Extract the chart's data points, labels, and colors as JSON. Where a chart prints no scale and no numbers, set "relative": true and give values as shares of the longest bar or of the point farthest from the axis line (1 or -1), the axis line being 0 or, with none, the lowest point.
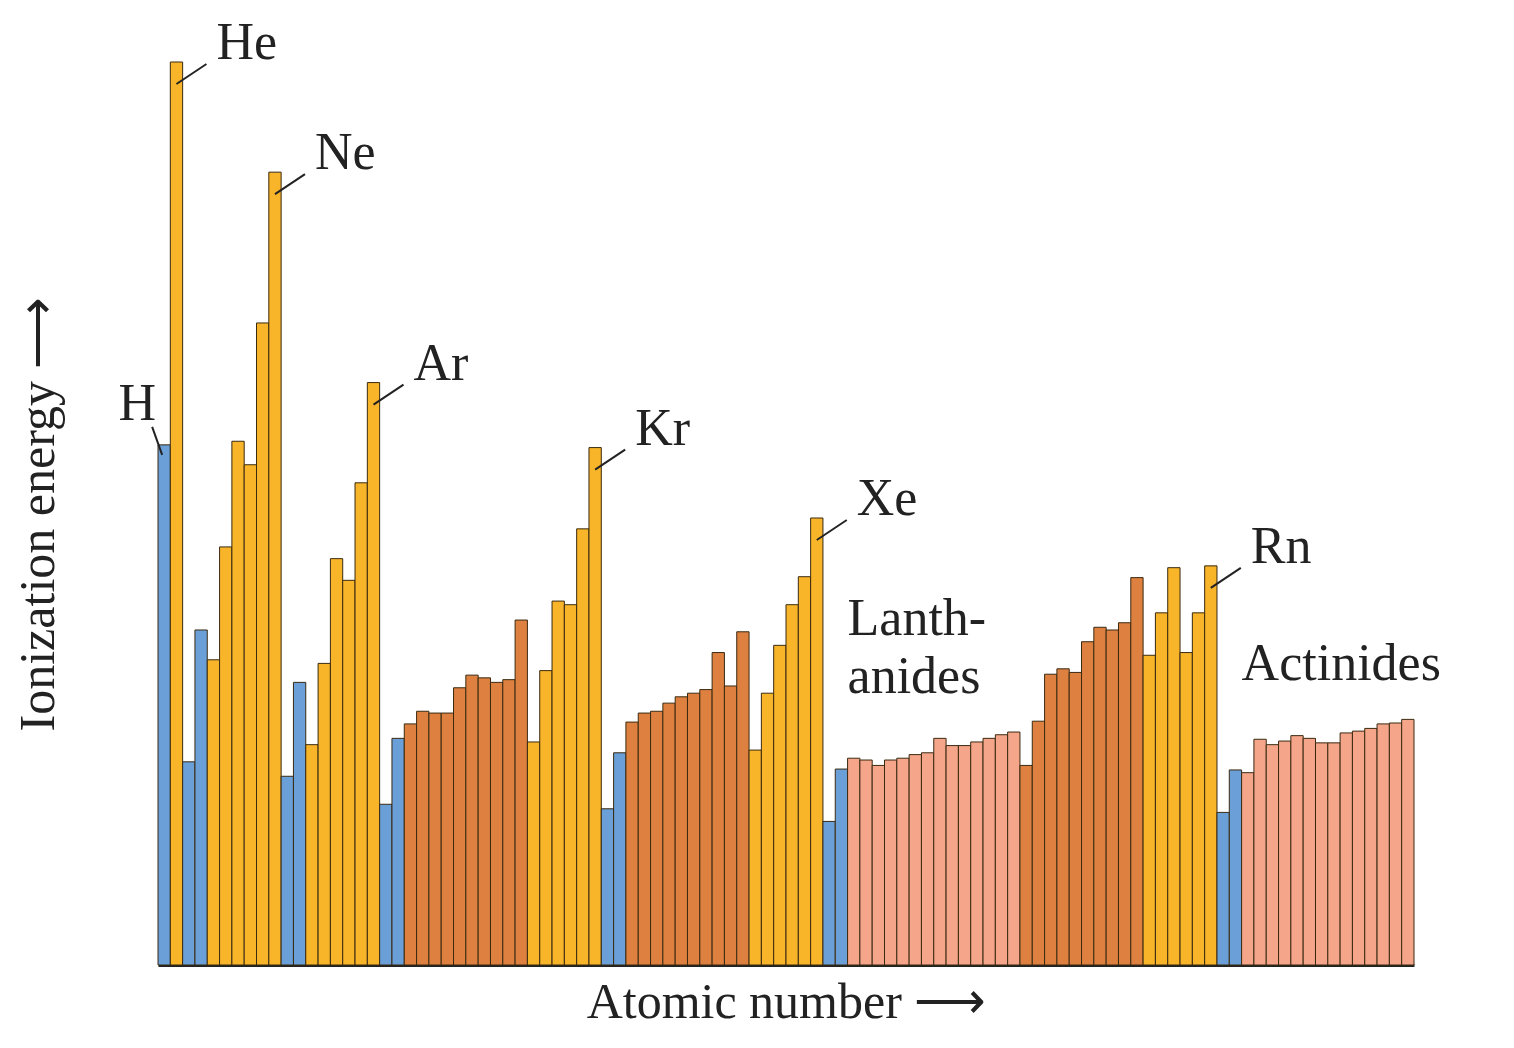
{
  "chart_data": {
    "type": "bar",
    "relative": true,
    "xlabel": "Atomic number ⟶",
    "ylabel": "Ionization energy ⟶",
    "categories": [
      null,
      null,
      null,
      null,
      null,
      null,
      null,
      null,
      null,
      null,
      null,
      null,
      null,
      null,
      null,
      null,
      null,
      null,
      null,
      null,
      null,
      null,
      null,
      null,
      null,
      null,
      null,
      null,
      null,
      null,
      null,
      null,
      null,
      null,
      null,
      null,
      null,
      null,
      null,
      null,
      null,
      null,
      null,
      null,
      null,
      null,
      null,
      null,
      null,
      null,
      null,
      null,
      null,
      null,
      null,
      null,
      null,
      null,
      null,
      null,
      null,
      null,
      null,
      null,
      null,
      null,
      null,
      null,
      null,
      null,
      null,
      null,
      null,
      null,
      null,
      null,
      null,
      null,
      null,
      null,
      null,
      null,
      null,
      null,
      null,
      null,
      null,
      null,
      null,
      null,
      null,
      null,
      null,
      null,
      null,
      null,
      null,
      null,
      null,
      null,
      null,
      null
    ],
    "values": [
      0.576,
      1.0,
      0.225,
      0.371,
      0.338,
      0.463,
      0.58,
      0.554,
      0.711,
      0.878,
      0.209,
      0.313,
      0.244,
      0.334,
      0.45,
      0.426,
      0.534,
      0.645,
      0.178,
      0.251,
      0.267,
      0.281,
      0.279,
      0.279,
      0.307,
      0.321,
      0.318,
      0.313,
      0.316,
      0.382,
      0.247,
      0.326,
      0.403,
      0.399,
      0.483,
      0.573,
      0.173,
      0.235,
      0.269,
      0.279,
      0.281,
      0.29,
      0.297,
      0.301,
      0.305,
      0.346,
      0.309,
      0.369,
      0.238,
      0.301,
      0.354,
      0.399,
      0.43,
      0.495,
      0.159,
      0.217,
      0.229,
      0.227,
      0.221,
      0.227,
      0.229,
      0.233,
      0.235,
      0.251,
      0.243,
      0.243,
      0.247,
      0.251,
      0.255,
      0.258,
      0.221,
      0.27,
      0.322,
      0.328,
      0.324,
      0.358,
      0.374,
      0.371,
      0.379,
      0.429,
      0.343,
      0.39,
      0.44,
      0.346,
      0.39,
      0.442,
      0.169,
      0.216,
      0.213,
      0.25,
      0.244,
      0.248,
      0.254,
      0.251,
      0.246,
      0.246,
      0.257,
      0.259,
      0.262,
      0.267,
      0.268,
      0.272
    ],
    "colors": [
      "#6a9fd8",
      "#f8b52a",
      "#6a9fd8",
      "#6a9fd8",
      "#f8b52a",
      "#f8b52a",
      "#f8b52a",
      "#f8b52a",
      "#f8b52a",
      "#f8b52a",
      "#6a9fd8",
      "#6a9fd8",
      "#f8b52a",
      "#f8b52a",
      "#f8b52a",
      "#f8b52a",
      "#f8b52a",
      "#f8b52a",
      "#6a9fd8",
      "#6a9fd8",
      "#dd8040",
      "#dd8040",
      "#dd8040",
      "#dd8040",
      "#dd8040",
      "#dd8040",
      "#dd8040",
      "#dd8040",
      "#dd8040",
      "#dd8040",
      "#f8b52a",
      "#f8b52a",
      "#f8b52a",
      "#f8b52a",
      "#f8b52a",
      "#f8b52a",
      "#6a9fd8",
      "#6a9fd8",
      "#dd8040",
      "#dd8040",
      "#dd8040",
      "#dd8040",
      "#dd8040",
      "#dd8040",
      "#dd8040",
      "#dd8040",
      "#dd8040",
      "#dd8040",
      "#f8b52a",
      "#f8b52a",
      "#f8b52a",
      "#f8b52a",
      "#f8b52a",
      "#f8b52a",
      "#6a9fd8",
      "#6a9fd8",
      "#f4a58a",
      "#f4a58a",
      "#f4a58a",
      "#f4a58a",
      "#f4a58a",
      "#f4a58a",
      "#f4a58a",
      "#f4a58a",
      "#f4a58a",
      "#f4a58a",
      "#f4a58a",
      "#f4a58a",
      "#f4a58a",
      "#f4a58a",
      "#dd8040",
      "#dd8040",
      "#dd8040",
      "#dd8040",
      "#dd8040",
      "#dd8040",
      "#dd8040",
      "#dd8040",
      "#dd8040",
      "#dd8040",
      "#f8b52a",
      "#f8b52a",
      "#f8b52a",
      "#f8b52a",
      "#f8b52a",
      "#f8b52a",
      "#6a9fd8",
      "#6a9fd8",
      "#f4a58a",
      "#f4a58a",
      "#f4a58a",
      "#f4a58a",
      "#f4a58a",
      "#f4a58a",
      "#f4a58a",
      "#f4a58a",
      "#f4a58a",
      "#f4a58a",
      "#f4a58a",
      "#f4a58a",
      "#f4a58a",
      "#f4a58a"
    ],
    "annotations": [
      "H",
      "He",
      "Ne",
      "Ar",
      "Kr",
      "Xe",
      "Rn",
      "Lanth-\nanides",
      "Actinides"
    ]
  }
}
